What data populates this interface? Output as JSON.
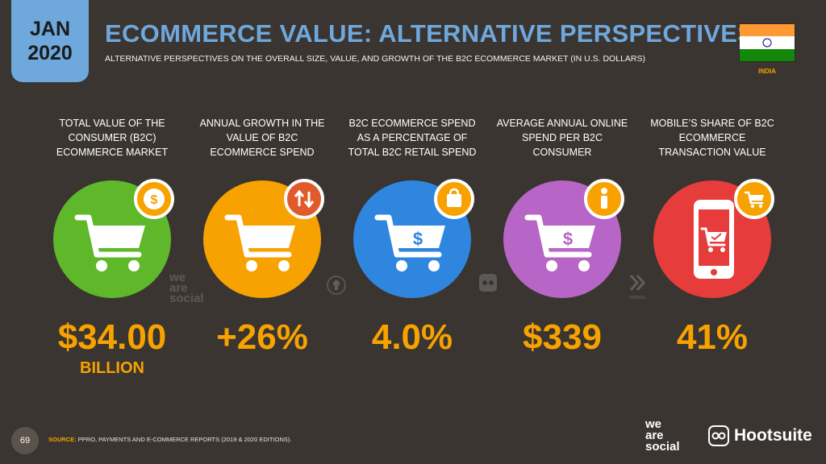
{
  "header": {
    "date_month": "JAN",
    "date_year": "2020",
    "title": "ECOMMERCE VALUE: ALTERNATIVE PERSPECTIVES",
    "subtitle": "ALTERNATIVE PERSPECTIVES ON THE OVERALL SIZE, VALUE, AND GROWTH OF THE B2C ECOMMERCE MARKET (IN U.S. DOLLARS)",
    "country": "INDIA"
  },
  "metrics": [
    {
      "label": "TOTAL VALUE OF THE CONSUMER (B2C) ECOMMERCE MARKET",
      "value": "$34.00",
      "unit": "BILLION",
      "color": "#5fb82a",
      "icon": "cart-icon",
      "badge_icon": "dollar-coin-icon"
    },
    {
      "label": "ANNUAL GROWTH IN THE VALUE OF B2C ECOMMERCE SPEND",
      "value": "+26%",
      "unit": "",
      "color": "#f7a200",
      "icon": "cart-icon",
      "badge_icon": "up-down-arrows-icon"
    },
    {
      "label": "B2C ECOMMERCE SPEND AS A PERCENTAGE OF TOTAL B2C RETAIL SPEND",
      "value": "4.0%",
      "unit": "",
      "color": "#2f86de",
      "icon": "cart-dollar-icon",
      "badge_icon": "shopping-bag-icon"
    },
    {
      "label": "AVERAGE ANNUAL ONLINE SPEND PER B2C CONSUMER",
      "value": "$339",
      "unit": "",
      "color": "#b765c6",
      "icon": "cart-dollar-icon",
      "badge_icon": "person-icon"
    },
    {
      "label": "MOBILE’S SHARE OF B2C ECOMMERCE TRANSACTION VALUE",
      "value": "41%",
      "unit": "",
      "color": "#e63c3c",
      "icon": "mobile-phone-icon",
      "badge_icon": "cart-icon"
    }
  ],
  "footer": {
    "page_number": "69",
    "source_label": "SOURCE:",
    "source_text": "PPRO, PAYMENTS AND E-COMMERCE REPORTS (2019 & 2020 EDITIONS).",
    "logo_we": "we",
    "logo_are": "are",
    "logo_social": "social",
    "logo_hootsuite": "Hootsuite"
  },
  "watermarks": {
    "we": "we",
    "are": "are",
    "social": "social",
    "kepios": "KEPIOS"
  }
}
